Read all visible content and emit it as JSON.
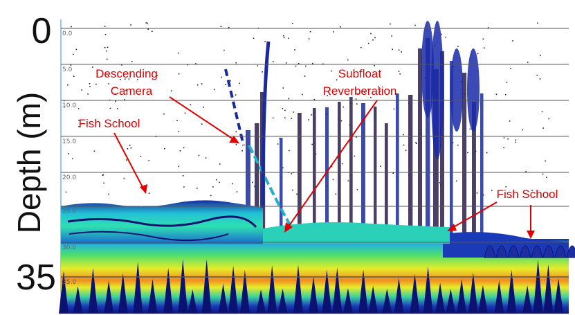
{
  "figure": {
    "axis_title": "Depth (m)",
    "big_tick_top": "0",
    "big_tick_bottom": "35",
    "depth_ticks": [
      "0.0",
      "5.0",
      "10.0",
      "15.0",
      "20.0",
      "25.0",
      "30.0",
      "35.0"
    ],
    "annotations": {
      "descending_camera_line1": "Descending",
      "descending_camera_line2": "Camera",
      "subfloat_line1": "Subfloat",
      "subfloat_line2": "Reverberation",
      "fish_school_left": "Fish School",
      "fish_school_right": "Fish School"
    },
    "colors": {
      "annotation": "#e00000",
      "gridline": "#555555",
      "deep_blue": "#101a8c",
      "cyan": "#25d6d0",
      "green": "#58e05a",
      "yellow": "#f2ee2a",
      "orange": "#f08a20",
      "red": "#e02020"
    }
  }
}
